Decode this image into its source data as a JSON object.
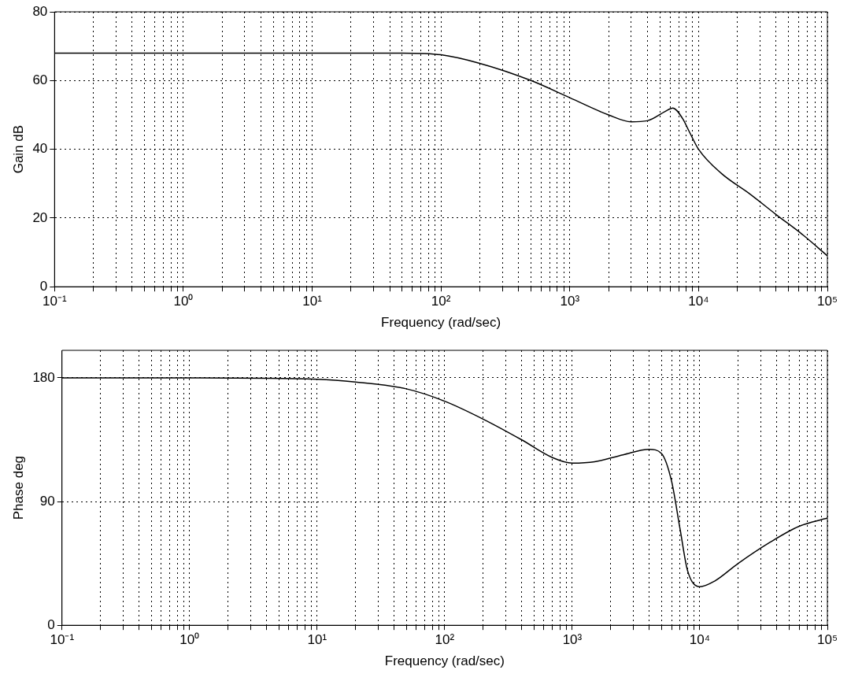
{
  "chart_data": [
    {
      "type": "line",
      "xlabel": "Frequency (rad/sec)",
      "ylabel": "Gain dB",
      "log": "x",
      "grid": true,
      "marker": "none",
      "x": [
        0.1,
        1,
        10,
        50,
        100,
        200,
        500,
        1000,
        2000,
        3000,
        4000,
        5500,
        6300,
        7500,
        8500,
        10000,
        15000,
        25000,
        40000,
        65000,
        100000
      ],
      "series": [
        {
          "color": "#000000",
          "values": [
            68,
            68,
            68,
            68,
            67.5,
            65,
            60,
            55,
            50,
            48,
            48.3,
            51,
            52,
            49,
            45,
            40,
            33,
            27,
            21,
            15,
            9
          ]
        }
      ],
      "xlim": [
        0.1,
        100000
      ],
      "ylim": [
        0,
        80
      ],
      "yticks": [
        0,
        20,
        40,
        60,
        80
      ],
      "xticks": [
        {
          "value": 0.1,
          "label": "10⁻¹"
        },
        {
          "value": 0.2,
          "label": null
        },
        {
          "value": 0.3,
          "label": null
        },
        {
          "value": 0.4,
          "label": null
        },
        {
          "value": 0.5,
          "label": null
        },
        {
          "value": 0.6,
          "label": null
        },
        {
          "value": 0.7,
          "label": null
        },
        {
          "value": 0.8,
          "label": null
        },
        {
          "value": 0.9,
          "label": null
        },
        {
          "value": 1,
          "label": "10⁰"
        },
        {
          "value": 2,
          "label": null
        },
        {
          "value": 3,
          "label": null
        },
        {
          "value": 4,
          "label": null
        },
        {
          "value": 5,
          "label": null
        },
        {
          "value": 6,
          "label": null
        },
        {
          "value": 7,
          "label": null
        },
        {
          "value": 8,
          "label": null
        },
        {
          "value": 9,
          "label": null
        },
        {
          "value": 10,
          "label": "10¹"
        },
        {
          "value": 20,
          "label": null
        },
        {
          "value": 30,
          "label": null
        },
        {
          "value": 40,
          "label": null
        },
        {
          "value": 50,
          "label": null
        },
        {
          "value": 60,
          "label": null
        },
        {
          "value": 70,
          "label": null
        },
        {
          "value": 80,
          "label": null
        },
        {
          "value": 90,
          "label": null
        },
        {
          "value": 100,
          "label": "10²"
        },
        {
          "value": 200,
          "label": null
        },
        {
          "value": 300,
          "label": null
        },
        {
          "value": 400,
          "label": null
        },
        {
          "value": 500,
          "label": null
        },
        {
          "value": 600,
          "label": null
        },
        {
          "value": 700,
          "label": null
        },
        {
          "value": 800,
          "label": null
        },
        {
          "value": 900,
          "label": null
        },
        {
          "value": 1000,
          "label": "10³"
        },
        {
          "value": 2000,
          "label": null
        },
        {
          "value": 3000,
          "label": null
        },
        {
          "value": 4000,
          "label": null
        },
        {
          "value": 5000,
          "label": null
        },
        {
          "value": 6000,
          "label": null
        },
        {
          "value": 7000,
          "label": null
        },
        {
          "value": 8000,
          "label": null
        },
        {
          "value": 9000,
          "label": null
        },
        {
          "value": 10000,
          "label": "10⁴"
        },
        {
          "value": 20000,
          "label": null
        },
        {
          "value": 30000,
          "label": null
        },
        {
          "value": 40000,
          "label": null
        },
        {
          "value": 50000,
          "label": null
        },
        {
          "value": 60000,
          "label": null
        },
        {
          "value": 70000,
          "label": null
        },
        {
          "value": 80000,
          "label": null
        },
        {
          "value": 90000,
          "label": null
        },
        {
          "value": 100000,
          "label": "10⁵"
        }
      ]
    },
    {
      "type": "line",
      "xlabel": "Frequency (rad/sec)",
      "ylabel": "Phase deg",
      "log": "x",
      "grid": true,
      "marker": "none",
      "x": [
        0.1,
        1,
        10,
        20,
        50,
        100,
        200,
        400,
        700,
        1000,
        1500,
        2500,
        4000,
        5000,
        6000,
        7000,
        8000,
        10000,
        13000,
        20000,
        35000,
        60000,
        100000
      ],
      "series": [
        {
          "color": "#000000",
          "values": [
            180,
            180,
            179,
            177,
            172,
            163,
            150,
            135,
            122,
            118,
            119,
            124,
            128,
            125,
            105,
            70,
            40,
            28,
            32,
            45,
            60,
            72,
            78
          ]
        }
      ],
      "xlim": [
        0.1,
        100000
      ],
      "ylim": [
        0,
        200
      ],
      "yticks": [
        0,
        90,
        180
      ],
      "xticks": [
        {
          "value": 0.1,
          "label": "10⁻¹"
        },
        {
          "value": 0.2,
          "label": null
        },
        {
          "value": 0.3,
          "label": null
        },
        {
          "value": 0.4,
          "label": null
        },
        {
          "value": 0.5,
          "label": null
        },
        {
          "value": 0.6,
          "label": null
        },
        {
          "value": 0.7,
          "label": null
        },
        {
          "value": 0.8,
          "label": null
        },
        {
          "value": 0.9,
          "label": null
        },
        {
          "value": 1,
          "label": "10⁰"
        },
        {
          "value": 2,
          "label": null
        },
        {
          "value": 3,
          "label": null
        },
        {
          "value": 4,
          "label": null
        },
        {
          "value": 5,
          "label": null
        },
        {
          "value": 6,
          "label": null
        },
        {
          "value": 7,
          "label": null
        },
        {
          "value": 8,
          "label": null
        },
        {
          "value": 9,
          "label": null
        },
        {
          "value": 10,
          "label": "10¹"
        },
        {
          "value": 20,
          "label": null
        },
        {
          "value": 30,
          "label": null
        },
        {
          "value": 40,
          "label": null
        },
        {
          "value": 50,
          "label": null
        },
        {
          "value": 60,
          "label": null
        },
        {
          "value": 70,
          "label": null
        },
        {
          "value": 80,
          "label": null
        },
        {
          "value": 90,
          "label": null
        },
        {
          "value": 100,
          "label": "10²"
        },
        {
          "value": 200,
          "label": null
        },
        {
          "value": 300,
          "label": null
        },
        {
          "value": 400,
          "label": null
        },
        {
          "value": 500,
          "label": null
        },
        {
          "value": 600,
          "label": null
        },
        {
          "value": 700,
          "label": null
        },
        {
          "value": 800,
          "label": null
        },
        {
          "value": 900,
          "label": null
        },
        {
          "value": 1000,
          "label": "10³"
        },
        {
          "value": 2000,
          "label": null
        },
        {
          "value": 3000,
          "label": null
        },
        {
          "value": 4000,
          "label": null
        },
        {
          "value": 5000,
          "label": null
        },
        {
          "value": 6000,
          "label": null
        },
        {
          "value": 7000,
          "label": null
        },
        {
          "value": 8000,
          "label": null
        },
        {
          "value": 9000,
          "label": null
        },
        {
          "value": 10000,
          "label": "10⁴"
        },
        {
          "value": 20000,
          "label": null
        },
        {
          "value": 30000,
          "label": null
        },
        {
          "value": 40000,
          "label": null
        },
        {
          "value": 50000,
          "label": null
        },
        {
          "value": 60000,
          "label": null
        },
        {
          "value": 70000,
          "label": null
        },
        {
          "value": 80000,
          "label": null
        },
        {
          "value": 90000,
          "label": null
        },
        {
          "value": 100000,
          "label": "10⁵"
        }
      ]
    }
  ]
}
